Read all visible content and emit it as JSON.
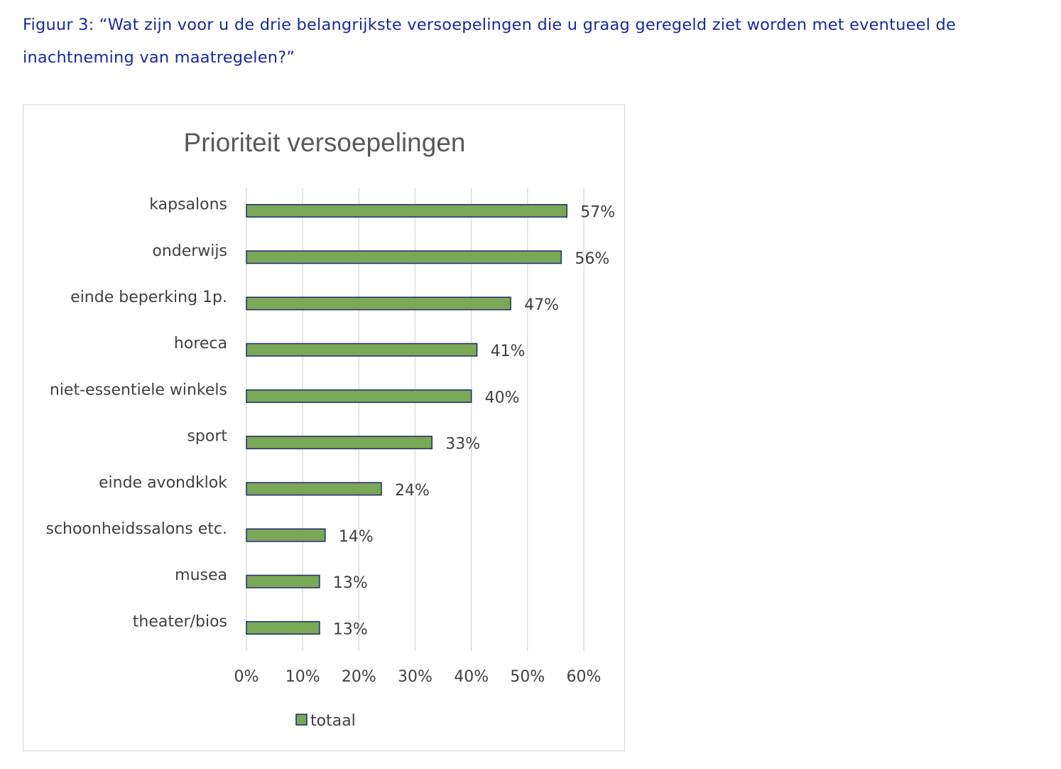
{
  "figure": {
    "caption": "Figuur 3: “Wat zijn voor u de drie belangrijkste versoepelingen die u graag geregeld ziet worden met eventueel de inachtneming van maatregelen?”"
  },
  "colors": {
    "caption": "#1a2a9a",
    "bar_fill": "#7aa857",
    "bar_stroke": "#1f2a6e",
    "gridline": "#d9d9d9",
    "text": "#404040",
    "title": "#595959"
  },
  "chart_data": {
    "type": "bar",
    "orientation": "horizontal",
    "title": "Prioriteit versoepelingen",
    "xlabel": "",
    "ylabel": "",
    "categories": [
      "kapsalons",
      "onderwijs",
      "einde beperking 1p.",
      "horeca",
      "niet-essentiele winkels",
      "sport",
      "einde avondklok",
      "schoonheidssalons etc.",
      "musea",
      "theater/bios"
    ],
    "series": [
      {
        "name": "totaal",
        "values": [
          57,
          56,
          47,
          41,
          40,
          33,
          24,
          14,
          13,
          13
        ]
      }
    ],
    "data_labels": [
      "57%",
      "56%",
      "47%",
      "41%",
      "40%",
      "33%",
      "24%",
      "14%",
      "13%",
      "13%"
    ],
    "xlim": [
      0,
      60
    ],
    "x_ticks": [
      0,
      10,
      20,
      30,
      40,
      50,
      60
    ],
    "x_tick_labels": [
      "0%",
      "10%",
      "20%",
      "30%",
      "40%",
      "50%",
      "60%"
    ],
    "grid": "vertical",
    "legend": "bottom"
  }
}
